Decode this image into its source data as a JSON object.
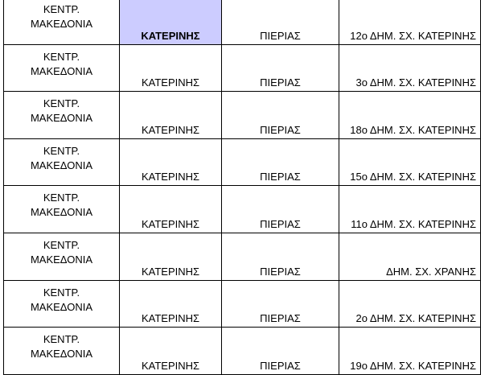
{
  "rows": [
    {
      "region_1": "ΚΕΝΤΡ.",
      "region_2": "ΜΑΚΕΔΟΝΙΑ",
      "municipality": "ΚΑΤΕΡΙΝΗΣ",
      "prefecture": "ΠΙΕΡΙΑΣ",
      "school": "12ο ΔΗΜ. ΣΧ. ΚΑΤΕΡΙΝΗΣ"
    },
    {
      "region_1": "ΚΕΝΤΡ.",
      "region_2": "ΜΑΚΕΔΟΝΙΑ",
      "municipality": "ΚΑΤΕΡΙΝΗΣ",
      "prefecture": "ΠΙΕΡΙΑΣ",
      "school": "3ο ΔΗΜ. ΣΧ. ΚΑΤΕΡΙΝΗΣ"
    },
    {
      "region_1": "ΚΕΝΤΡ.",
      "region_2": "ΜΑΚΕΔΟΝΙΑ",
      "municipality": "ΚΑΤΕΡΙΝΗΣ",
      "prefecture": "ΠΙΕΡΙΑΣ",
      "school": "18ο ΔΗΜ. ΣΧ. ΚΑΤΕΡΙΝΗΣ"
    },
    {
      "region_1": "ΚΕΝΤΡ.",
      "region_2": "ΜΑΚΕΔΟΝΙΑ",
      "municipality": "ΚΑΤΕΡΙΝΗΣ",
      "prefecture": "ΠΙΕΡΙΑΣ",
      "school": "15ο ΔΗΜ. ΣΧ. ΚΑΤΕΡΙΝΗΣ"
    },
    {
      "region_1": "ΚΕΝΤΡ.",
      "region_2": "ΜΑΚΕΔΟΝΙΑ",
      "municipality": "ΚΑΤΕΡΙΝΗΣ",
      "prefecture": "ΠΙΕΡΙΑΣ",
      "school": "11ο ΔΗΜ. ΣΧ. ΚΑΤΕΡΙΝΗΣ"
    },
    {
      "region_1": "ΚΕΝΤΡ.",
      "region_2": "ΜΑΚΕΔΟΝΙΑ",
      "municipality": "ΚΑΤΕΡΙΝΗΣ",
      "prefecture": "ΠΙΕΡΙΑΣ",
      "school": "ΔΗΜ. ΣΧ. ΧΡΑΝΗΣ"
    },
    {
      "region_1": "ΚΕΝΤΡ.",
      "region_2": "ΜΑΚΕΔΟΝΙΑ",
      "municipality": "ΚΑΤΕΡΙΝΗΣ",
      "prefecture": "ΠΙΕΡΙΑΣ",
      "school": "2ο ΔΗΜ. ΣΧ. ΚΑΤΕΡΙΝΗΣ"
    },
    {
      "region_1": "ΚΕΝΤΡ.",
      "region_2": "ΜΑΚΕΔΟΝΙΑ",
      "municipality": "ΚΑΤΕΡΙΝΗΣ",
      "prefecture": "ΠΙΕΡΙΑΣ",
      "school": "19ο ΔΗΜ. ΣΧ. ΚΑΤΕΡΙΝΗΣ"
    }
  ],
  "highlight_color": "#ccccff"
}
